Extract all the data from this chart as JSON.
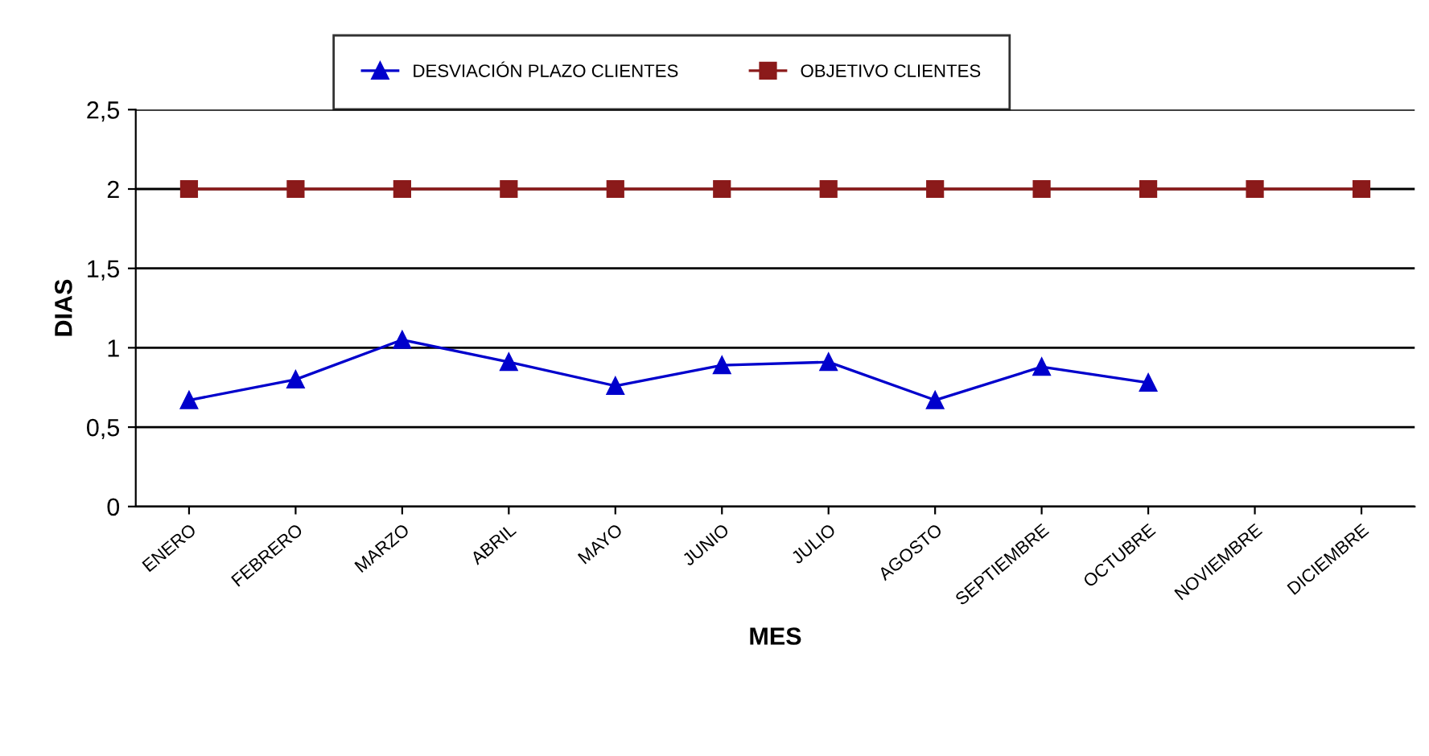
{
  "chart_data": {
    "type": "line",
    "xlabel": "MES",
    "ylabel": "DIAS",
    "categories": [
      "ENERO",
      "FEBRERO",
      "MARZO",
      "ABRIL",
      "MAYO",
      "JUNIO",
      "JULIO",
      "AGOSTO",
      "SEPTIEMBRE",
      "OCTUBRE",
      "NOVIEMBRE",
      "DICIEMBRE"
    ],
    "series": [
      {
        "name": "DESVIACIÓN PLAZO CLIENTES",
        "color": "#0000cc",
        "marker": "triangle",
        "values": [
          0.67,
          0.8,
          1.05,
          0.91,
          0.76,
          0.89,
          0.91,
          0.67,
          0.88,
          0.78,
          null,
          null
        ]
      },
      {
        "name": "OBJETIVO CLIENTES",
        "color": "#8b1a1a",
        "marker": "square",
        "values": [
          2,
          2,
          2,
          2,
          2,
          2,
          2,
          2,
          2,
          2,
          2,
          2
        ]
      }
    ],
    "ylim": [
      0,
      2.5
    ],
    "yticks": [
      0,
      {
        "value": 0.5,
        "label": "0,5"
      },
      1,
      {
        "value": 1.5,
        "label": "1,5"
      },
      2,
      {
        "value": 2.5,
        "label": "2,5"
      }
    ],
    "grid": "y",
    "legend": "top"
  }
}
